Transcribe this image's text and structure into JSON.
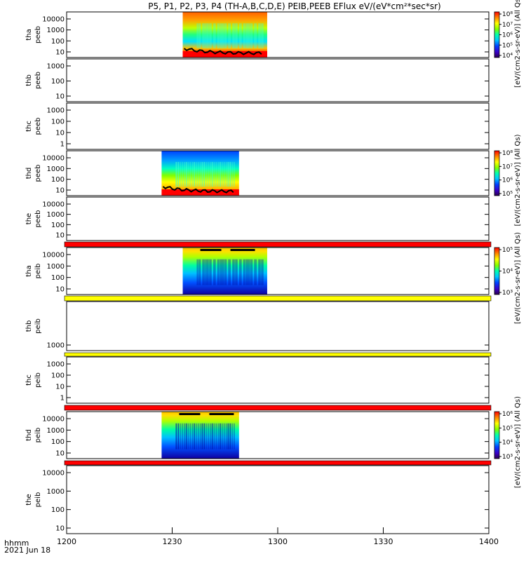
{
  "title": "P5, P1, P2, P3, P4 (TH-A,B,C,D,E) PEIB,PEEB EFlux eV/(eV*cm²*sec*sr)",
  "x_axis": {
    "label_line1": "hhmm",
    "label_line2": "2021 Jun 18",
    "ticks": [
      "1200",
      "1230",
      "1300",
      "1330",
      "1400"
    ]
  },
  "colorbar_labels": {
    "cb1": "[eV/(cm2-s-sr-eV)] (All Qs)",
    "cb2": "[eV/(cm2-s-sr-eV)] (All Qs)",
    "cb3": "[eV/(cm2-s-sr-eV)] (All Qs)",
    "cb4": "[eV/(cm2-s-sr-eV)] (All Qs)"
  },
  "colors": {
    "fill_red": "#ff0000",
    "fill_yellow": "#ffff00",
    "trace": "#000000"
  },
  "chart_data": {
    "type": "heatmap",
    "x_unit": "hhmm",
    "x_range": [
      "1200",
      "1400"
    ],
    "panels": [
      {
        "probe": "tha",
        "product": "peeb",
        "ylabel_1": "tha",
        "ylabel_2": "peeb",
        "y_ticks": [
          "10",
          "100",
          "1000",
          "10000"
        ],
        "log_y": true,
        "data_interval": [
          "1233",
          "1257"
        ],
        "has_data": true,
        "colorbar": "cb1"
      },
      {
        "probe": "thb",
        "product": "peeb",
        "ylabel_1": "thb",
        "ylabel_2": "peeb",
        "y_ticks": [
          "10",
          "100",
          "1000"
        ],
        "log_y": true,
        "has_data": false
      },
      {
        "probe": "thc",
        "product": "peeb",
        "ylabel_1": "thc",
        "ylabel_2": "peeb",
        "y_ticks": [
          "1",
          "10",
          "100",
          "1000"
        ],
        "log_y": true,
        "has_data": false
      },
      {
        "probe": "thd",
        "product": "peeb",
        "ylabel_1": "thd",
        "ylabel_2": "peeb",
        "y_ticks": [
          "10",
          "100",
          "1000",
          "10000"
        ],
        "log_y": true,
        "data_interval": [
          "1227",
          "1249"
        ],
        "has_data": true,
        "colorbar": "cb2"
      },
      {
        "probe": "the",
        "product": "peeb",
        "ylabel_1": "the",
        "ylabel_2": "peeb",
        "y_ticks": [
          "10",
          "100",
          "1000",
          "10000"
        ],
        "log_y": true,
        "has_data": false,
        "bottom_band": "red"
      },
      {
        "probe": "tha",
        "product": "peib",
        "ylabel_1": "tha",
        "ylabel_2": "peib",
        "y_ticks": [
          "10",
          "100",
          "1000",
          "10000"
        ],
        "log_y": true,
        "data_interval": [
          "1233",
          "1257"
        ],
        "has_data": true,
        "colorbar": "cb3",
        "bottom_band": "yellow"
      },
      {
        "probe": "thb",
        "product": "peib",
        "ylabel_1": "thb",
        "ylabel_2": "peib",
        "y_ticks": [
          "1000"
        ],
        "log_y": true,
        "has_data": false,
        "bottom_band": "yellow"
      },
      {
        "probe": "thc",
        "product": "peib",
        "ylabel_1": "thc",
        "ylabel_2": "peib",
        "y_ticks": [
          "1",
          "10",
          "100",
          "1000"
        ],
        "log_y": true,
        "has_data": false,
        "bottom_band": "red"
      },
      {
        "probe": "thd",
        "product": "peib",
        "ylabel_1": "thd",
        "ylabel_2": "peib",
        "y_ticks": [
          "10",
          "100",
          "1000",
          "10000"
        ],
        "log_y": true,
        "data_interval": [
          "1227",
          "1249"
        ],
        "has_data": true,
        "colorbar": "cb4",
        "bottom_band": "red"
      },
      {
        "probe": "the",
        "product": "peib",
        "ylabel_1": "the",
        "ylabel_2": "peib",
        "y_ticks": [
          "10",
          "100",
          "1000",
          "10000"
        ],
        "log_y": true,
        "has_data": false
      }
    ],
    "colorbars": [
      {
        "id": "cb1",
        "ticks": [
          "10⁴",
          "10⁵",
          "10⁶",
          "10⁷",
          "10⁸"
        ],
        "scale": "log"
      },
      {
        "id": "cb2",
        "ticks": [
          "10⁵",
          "10⁶",
          "10⁷",
          "10⁸"
        ],
        "scale": "log"
      },
      {
        "id": "cb3",
        "ticks": [
          "10³",
          "10⁴",
          "10⁵"
        ],
        "scale": "log"
      },
      {
        "id": "cb4",
        "ticks": [
          "10³",
          "10⁴",
          "10⁵",
          "10⁶"
        ],
        "scale": "log"
      }
    ]
  }
}
